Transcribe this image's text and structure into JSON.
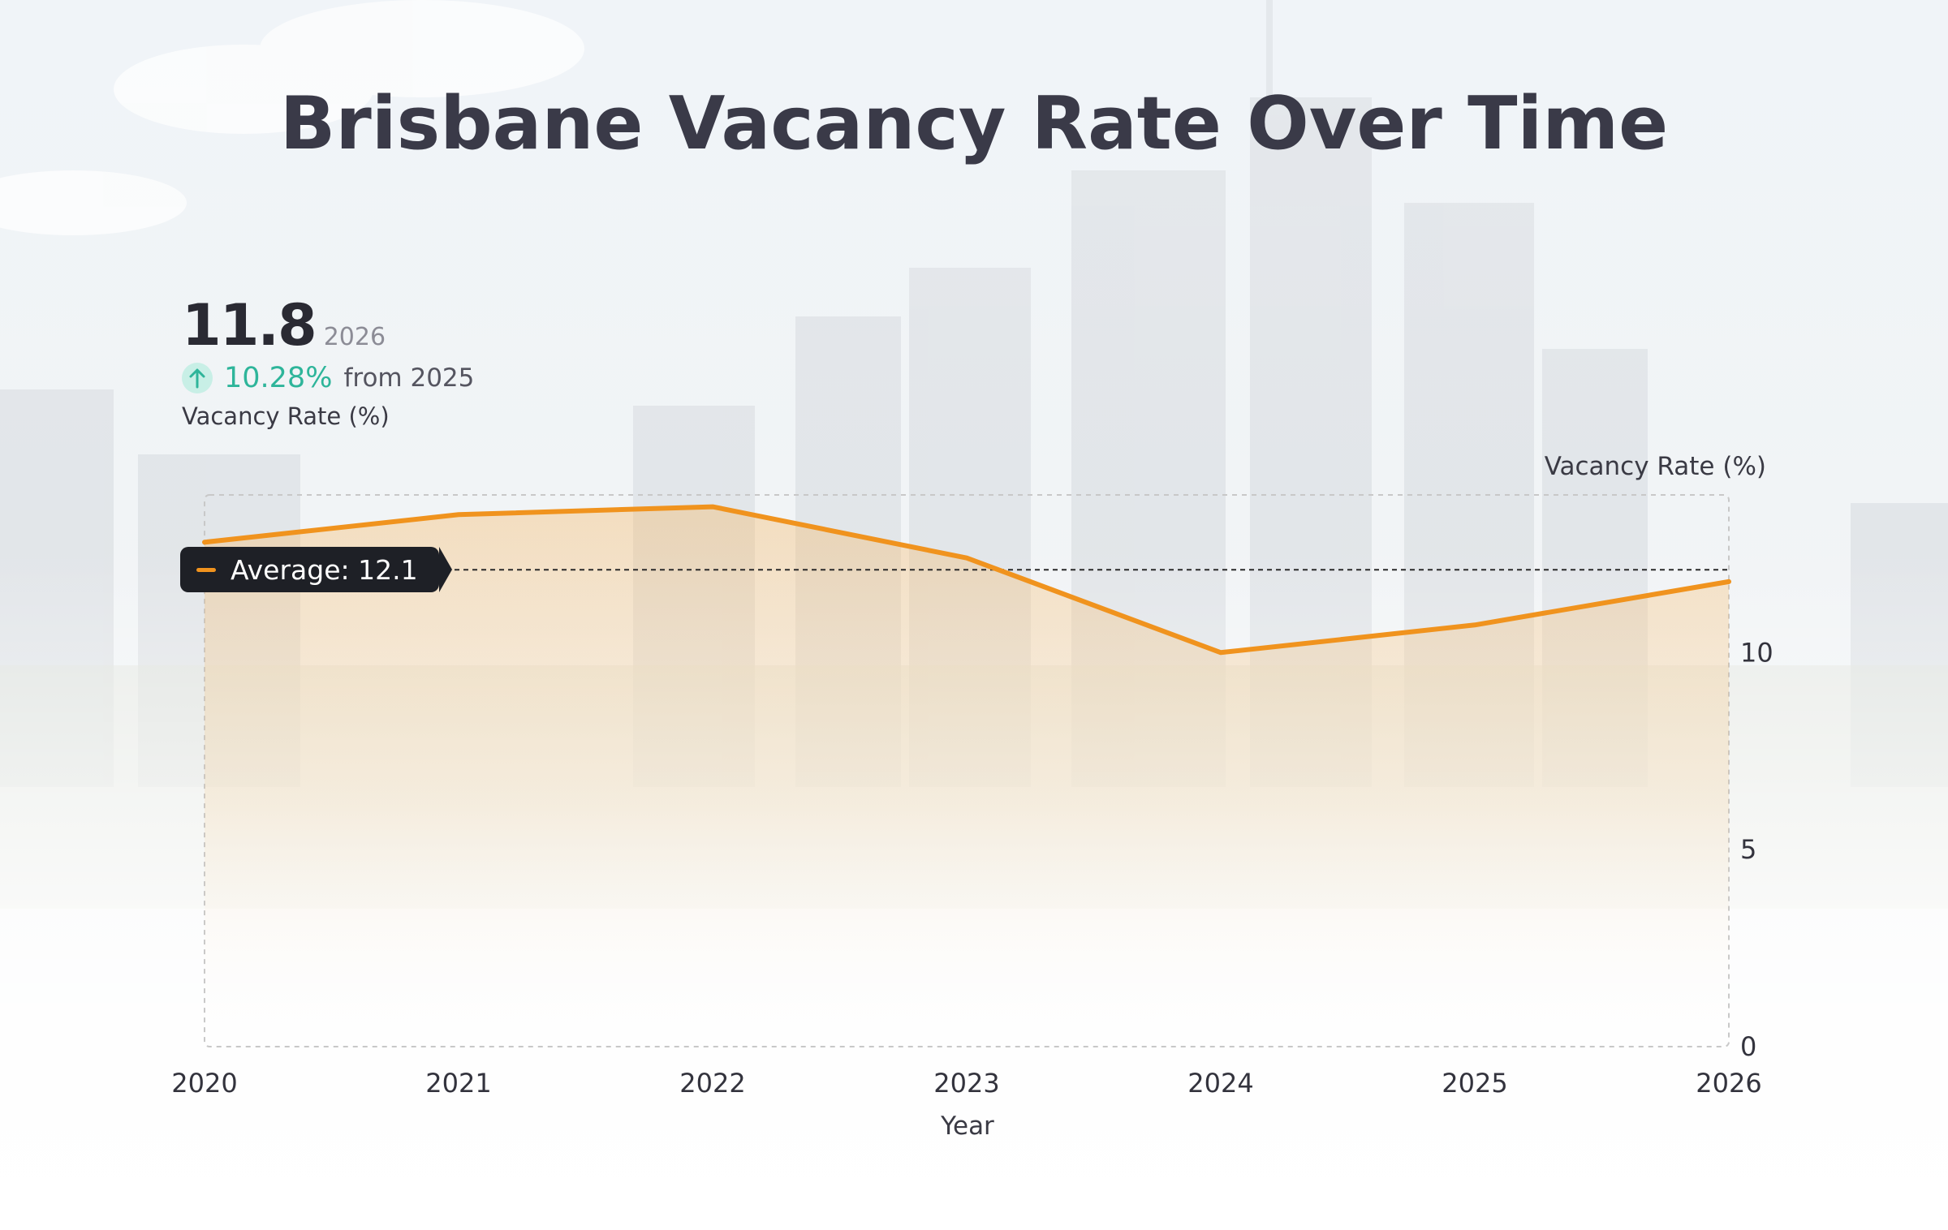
{
  "title": "Brisbane Vacancy Rate Over Time",
  "kpi": {
    "value": "11.8",
    "year": "2026",
    "change": "10.28%",
    "change_suffix": "from 2025",
    "metric": "Vacancy Rate (%)",
    "icon": "arrow-up-icon"
  },
  "colors": {
    "line": "#f0931e",
    "positive": "#2eb59a",
    "badge": "#1e2026"
  },
  "chart_data": {
    "type": "area",
    "x": [
      "2020",
      "2021",
      "2022",
      "2023",
      "2024",
      "2025",
      "2026"
    ],
    "series": [
      {
        "values": [
          12.8,
          13.5,
          13.7,
          12.4,
          10.0,
          10.7,
          11.8
        ]
      }
    ],
    "xlabel": "Year",
    "ylabel": "Vacancy Rate (%)",
    "ylim": [
      0,
      14
    ],
    "yticks": [
      0,
      5,
      10
    ],
    "y_axis_side": "right",
    "grid": false,
    "reference_line": {
      "label": "Average: 12.1",
      "value": 12.1
    }
  }
}
